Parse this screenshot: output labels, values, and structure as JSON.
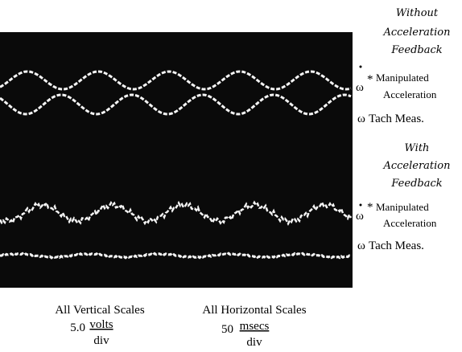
{
  "sections": [
    {
      "heading": [
        "Without",
        "Acceleration",
        "Feedback"
      ],
      "signals": [
        {
          "symbol": "ω",
          "mark": "*",
          "label": [
            "Manipulated",
            "Acceleration"
          ]
        },
        {
          "symbol": "ω",
          "label": [
            "Tach Meas."
          ]
        }
      ]
    },
    {
      "heading": [
        "With",
        "Acceleration",
        "Feedback"
      ],
      "signals": [
        {
          "symbol": "ω",
          "mark": "*",
          "label": [
            "Manipulated",
            "Acceleration"
          ]
        },
        {
          "symbol": "ω",
          "label": [
            "Tach Meas."
          ]
        }
      ]
    }
  ],
  "scales": [
    {
      "title": "All Vertical Scales",
      "value": "5.0",
      "numerator": "volts",
      "denominator": "div"
    },
    {
      "title": "All Horizontal Scales",
      "value": "50",
      "numerator": "msecs",
      "denominator": "div"
    }
  ]
}
